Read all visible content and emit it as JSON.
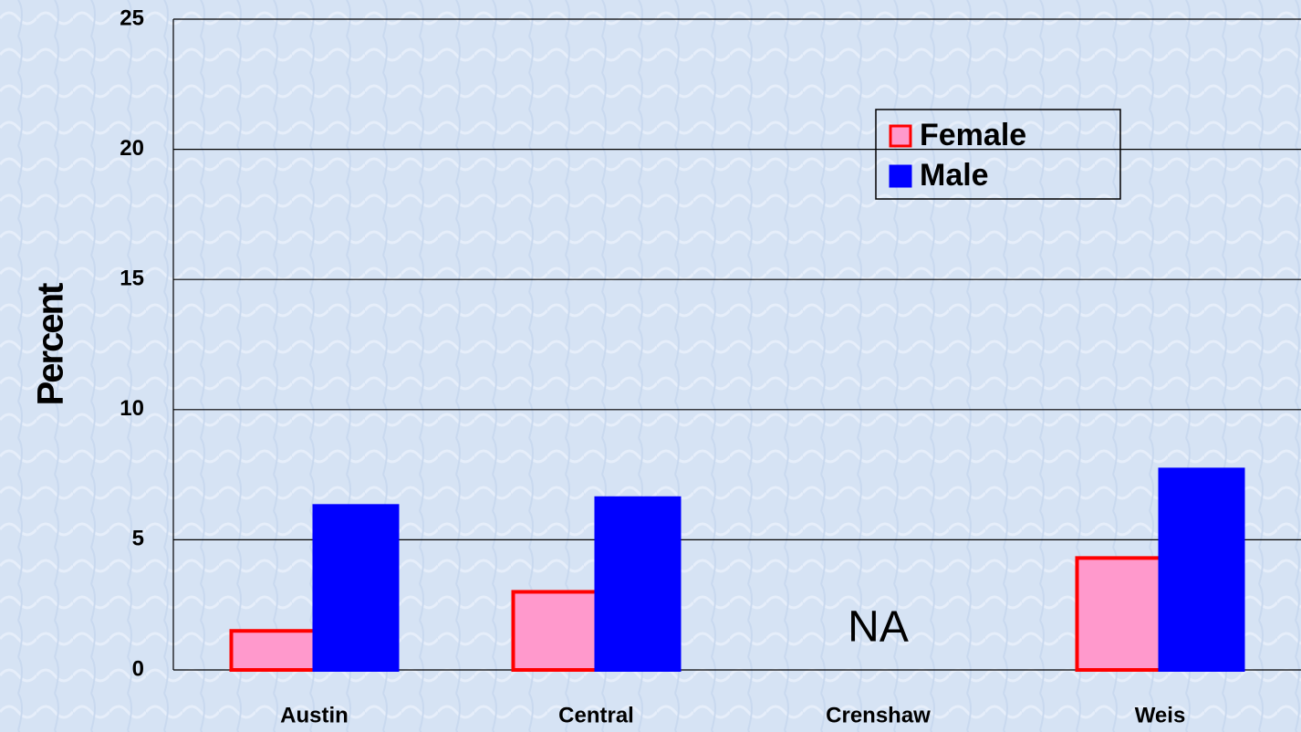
{
  "chart_data": {
    "type": "bar",
    "ylabel": "Percent",
    "categories": [
      "Austin",
      "Central",
      "Crenshaw",
      "Weis"
    ],
    "series": [
      {
        "name": "Female",
        "color": "#ff99cc",
        "edgecolor": "#ff0000",
        "values": [
          1.5,
          3.0,
          null,
          4.3
        ]
      },
      {
        "name": "Male",
        "color": "#0000ff",
        "edgecolor": "#0000ff",
        "values": [
          6.3,
          6.6,
          null,
          7.7
        ]
      }
    ],
    "annotation": "NA",
    "ylim": [
      0,
      25
    ],
    "yticks": [
      0,
      5,
      10,
      15,
      20,
      25
    ],
    "grid": true,
    "legend": "upper right"
  }
}
